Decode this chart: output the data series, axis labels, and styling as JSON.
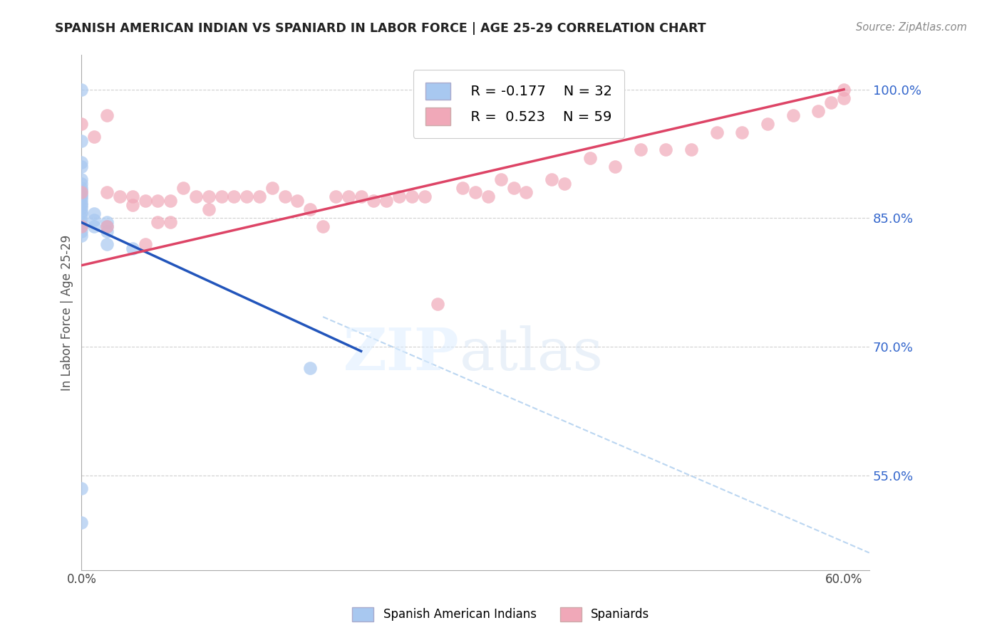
{
  "title": "SPANISH AMERICAN INDIAN VS SPANIARD IN LABOR FORCE | AGE 25-29 CORRELATION CHART",
  "source": "Source: ZipAtlas.com",
  "ylabel": "In Labor Force | Age 25-29",
  "xlim": [
    0.0,
    0.62
  ],
  "ylim": [
    0.44,
    1.04
  ],
  "yticks_right": [
    0.55,
    0.7,
    0.85,
    1.0
  ],
  "ytick_labels_right": [
    "55.0%",
    "70.0%",
    "85.0%",
    "100.0%"
  ],
  "blue_color": "#a8c8f0",
  "pink_color": "#f0a8b8",
  "blue_line_color": "#2255bb",
  "pink_line_color": "#dd4466",
  "right_axis_color": "#3366cc",
  "grid_color": "#bbbbbb",
  "legend_R1": "R = -0.177",
  "legend_N1": "N = 32",
  "legend_R2": "R =  0.523",
  "legend_N2": "N = 59",
  "blue_scatter_x": [
    0.0,
    0.0,
    0.0,
    0.0,
    0.0,
    0.0,
    0.0,
    0.0,
    0.0,
    0.0,
    0.0,
    0.0,
    0.0,
    0.0,
    0.0,
    0.0,
    0.0,
    0.0,
    0.0,
    0.0,
    0.0,
    0.01,
    0.01,
    0.01,
    0.02,
    0.02,
    0.02,
    0.02,
    0.04,
    0.18,
    0.0,
    0.0
  ],
  "blue_scatter_y": [
    1.0,
    0.94,
    0.915,
    0.91,
    0.895,
    0.89,
    0.885,
    0.882,
    0.878,
    0.875,
    0.872,
    0.868,
    0.865,
    0.862,
    0.858,
    0.855,
    0.85,
    0.845,
    0.84,
    0.835,
    0.83,
    0.855,
    0.848,
    0.84,
    0.845,
    0.84,
    0.835,
    0.82,
    0.815,
    0.675,
    0.535,
    0.495
  ],
  "pink_scatter_x": [
    0.0,
    0.0,
    0.0,
    0.01,
    0.02,
    0.02,
    0.02,
    0.03,
    0.04,
    0.04,
    0.05,
    0.05,
    0.06,
    0.06,
    0.07,
    0.07,
    0.08,
    0.09,
    0.1,
    0.1,
    0.11,
    0.12,
    0.13,
    0.14,
    0.15,
    0.16,
    0.17,
    0.18,
    0.19,
    0.2,
    0.21,
    0.22,
    0.23,
    0.24,
    0.25,
    0.26,
    0.27,
    0.28,
    0.3,
    0.31,
    0.32,
    0.33,
    0.34,
    0.35,
    0.37,
    0.38,
    0.4,
    0.42,
    0.44,
    0.46,
    0.48,
    0.5,
    0.52,
    0.54,
    0.56,
    0.58,
    0.59,
    0.6,
    0.6
  ],
  "pink_scatter_y": [
    0.96,
    0.88,
    0.84,
    0.945,
    0.97,
    0.88,
    0.84,
    0.875,
    0.875,
    0.865,
    0.87,
    0.82,
    0.87,
    0.845,
    0.87,
    0.845,
    0.885,
    0.875,
    0.875,
    0.86,
    0.875,
    0.875,
    0.875,
    0.875,
    0.885,
    0.875,
    0.87,
    0.86,
    0.84,
    0.875,
    0.875,
    0.875,
    0.87,
    0.87,
    0.875,
    0.875,
    0.875,
    0.75,
    0.885,
    0.88,
    0.875,
    0.895,
    0.885,
    0.88,
    0.895,
    0.89,
    0.92,
    0.91,
    0.93,
    0.93,
    0.93,
    0.95,
    0.95,
    0.96,
    0.97,
    0.975,
    0.985,
    0.99,
    1.0
  ],
  "blue_line_x": [
    0.0,
    0.22
  ],
  "blue_line_y": [
    0.845,
    0.695
  ],
  "pink_line_x": [
    0.0,
    0.6
  ],
  "pink_line_y": [
    0.795,
    1.0
  ],
  "dashed_line_x": [
    0.19,
    0.62
  ],
  "dashed_line_y": [
    0.735,
    0.46
  ],
  "background_color": "#ffffff"
}
